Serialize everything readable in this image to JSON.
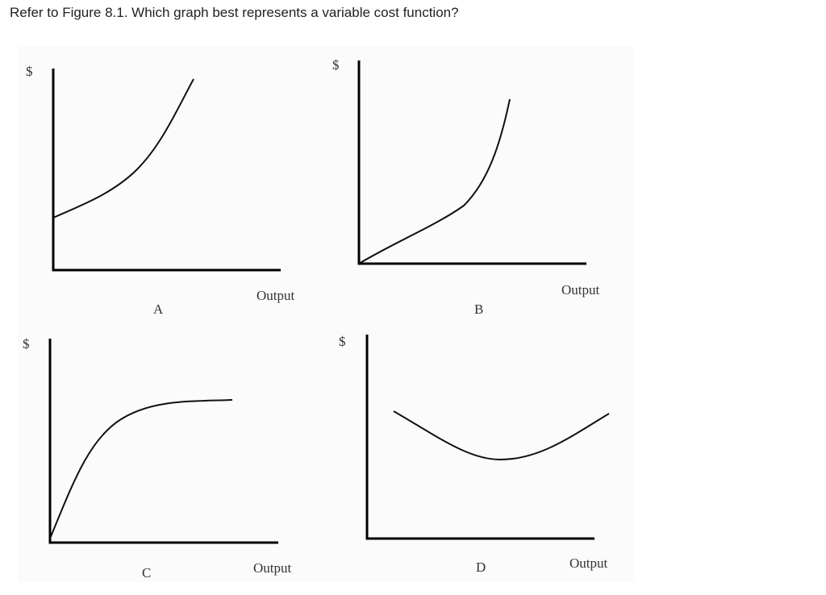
{
  "question": "Refer to Figure 8.1. Which graph best represents a variable cost function?",
  "figure": {
    "panels": [
      {
        "y_label": "$",
        "x_label": "Output",
        "letter": "A"
      },
      {
        "y_label": "$",
        "x_label": "Output",
        "letter": "B"
      },
      {
        "y_label": "$",
        "x_label": "Output",
        "letter": "C"
      },
      {
        "y_label": "$",
        "x_label": "Output",
        "letter": "D"
      }
    ]
  }
}
